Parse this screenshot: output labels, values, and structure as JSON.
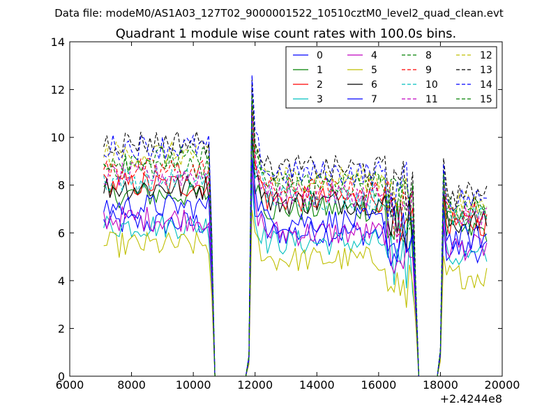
{
  "figure": {
    "suptitle": "Data file: modeM0/AS1A03_127T02_9000001522_10510cztM0_level2_quad_clean.evt"
  },
  "chart_data": {
    "type": "line",
    "title": "Quadrant 1 module wise count rates with 100.0s bins.",
    "xlabel": "",
    "ylabel": "",
    "x_offset_label": "+2.4244e8",
    "xlim": [
      6000,
      20000
    ],
    "ylim": [
      0,
      14
    ],
    "xticks": [
      6000,
      8000,
      10000,
      12000,
      14000,
      16000,
      18000,
      20000
    ],
    "yticks": [
      0,
      2,
      4,
      6,
      8,
      10,
      12,
      14
    ],
    "grid": false,
    "legend_position": "top-right",
    "legend_columns": 4,
    "x_start": 7100,
    "bin": 100,
    "segments": [
      {
        "from": 7100,
        "to": 10600
      },
      {
        "from": 11800,
        "to": 17200
      },
      {
        "from": 18000,
        "to": 19500
      }
    ],
    "gaps_zero": [
      {
        "from": 10700,
        "to": 11700
      },
      {
        "from": 17300,
        "to": 17900
      }
    ],
    "series": [
      {
        "name": "0",
        "color": "#0000ff",
        "dash": false,
        "seg_means": [
          6.4,
          6.0,
          5.3
        ]
      },
      {
        "name": "1",
        "color": "#008000",
        "dash": false,
        "seg_means": [
          7.6,
          7.0,
          6.1
        ]
      },
      {
        "name": "2",
        "color": "#ff0000",
        "dash": false,
        "seg_means": [
          8.0,
          7.4,
          6.4
        ]
      },
      {
        "name": "3",
        "color": "#00bfbf",
        "dash": false,
        "seg_means": [
          6.3,
          5.6,
          5.0
        ]
      },
      {
        "name": "4",
        "color": "#bf00bf",
        "dash": false,
        "seg_means": [
          6.6,
          6.0,
          5.4
        ]
      },
      {
        "name": "5",
        "color": "#bfbf00",
        "dash": false,
        "seg_means": [
          5.5,
          4.9,
          4.2
        ]
      },
      {
        "name": "6",
        "color": "#000000",
        "dash": false,
        "seg_means": [
          7.9,
          7.3,
          6.4
        ]
      },
      {
        "name": "7",
        "color": "#0000ff",
        "dash": false,
        "seg_means": [
          7.1,
          6.5,
          5.8
        ]
      },
      {
        "name": "8",
        "color": "#008000",
        "dash": true,
        "seg_means": [
          8.8,
          8.0,
          7.0
        ]
      },
      {
        "name": "9",
        "color": "#ff0000",
        "dash": true,
        "seg_means": [
          8.6,
          7.8,
          6.8
        ]
      },
      {
        "name": "10",
        "color": "#00bfbf",
        "dash": true,
        "seg_means": [
          8.2,
          7.5,
          6.6
        ]
      },
      {
        "name": "11",
        "color": "#bf00bf",
        "dash": true,
        "seg_means": [
          8.4,
          7.6,
          6.7
        ]
      },
      {
        "name": "12",
        "color": "#bfbf00",
        "dash": true,
        "seg_means": [
          9.3,
          8.3,
          7.2
        ]
      },
      {
        "name": "13",
        "color": "#000000",
        "dash": true,
        "seg_means": [
          9.8,
          8.7,
          7.6
        ]
      },
      {
        "name": "14",
        "color": "#0000ff",
        "dash": true,
        "seg_means": [
          9.6,
          8.5,
          7.4
        ]
      },
      {
        "name": "15",
        "color": "#008000",
        "dash": true,
        "seg_means": [
          9.1,
          8.1,
          7.1
        ]
      }
    ]
  }
}
